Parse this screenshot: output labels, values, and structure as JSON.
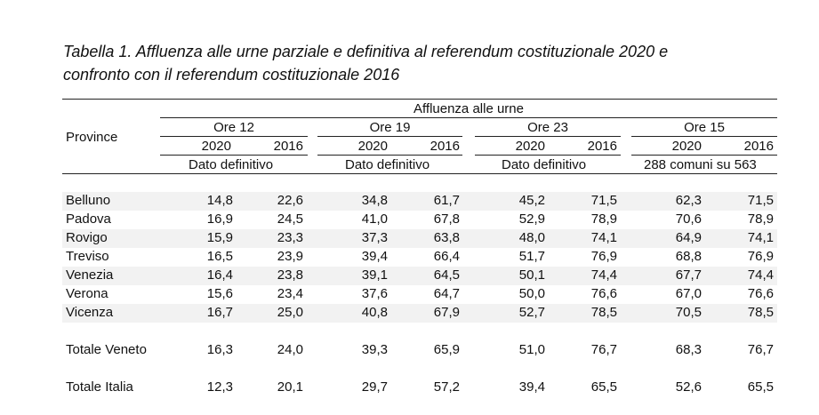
{
  "title": {
    "line1": "Tabella 1. Affluenza alle urne parziale e definitiva al referendum costituzionale 2020 e",
    "line2": "confronto con il referendum costituzionale 2016"
  },
  "header": {
    "province": "Province",
    "affluenza": "Affluenza alle urne",
    "groups": [
      {
        "label": "Ore 12",
        "y1": "2020",
        "y2": "2016",
        "note": "Dato definitivo"
      },
      {
        "label": "Ore 19",
        "y1": "2020",
        "y2": "2016",
        "note": "Dato definitivo"
      },
      {
        "label": "Ore 23",
        "y1": "2020",
        "y2": "2016",
        "note": "Dato definitivo"
      },
      {
        "label": "Ore 15",
        "y1": "2020",
        "y2": "2016",
        "note": "288 comuni su 563"
      }
    ]
  },
  "rows": [
    {
      "name": "Belluno",
      "v": [
        "14,8",
        "22,6",
        "34,8",
        "61,7",
        "45,2",
        "71,5",
        "62,3",
        "71,5"
      ]
    },
    {
      "name": "Padova",
      "v": [
        "16,9",
        "24,5",
        "41,0",
        "67,8",
        "52,9",
        "78,9",
        "70,6",
        "78,9"
      ]
    },
    {
      "name": "Rovigo",
      "v": [
        "15,9",
        "23,3",
        "37,3",
        "63,8",
        "48,0",
        "74,1",
        "64,9",
        "74,1"
      ]
    },
    {
      "name": "Treviso",
      "v": [
        "16,5",
        "23,9",
        "39,4",
        "66,4",
        "51,7",
        "76,9",
        "68,8",
        "76,9"
      ]
    },
    {
      "name": "Venezia",
      "v": [
        "16,4",
        "23,8",
        "39,1",
        "64,5",
        "50,1",
        "74,4",
        "67,7",
        "74,4"
      ]
    },
    {
      "name": "Verona",
      "v": [
        "15,6",
        "23,4",
        "37,6",
        "64,7",
        "50,0",
        "76,6",
        "67,0",
        "76,6"
      ]
    },
    {
      "name": "Vicenza",
      "v": [
        "16,7",
        "25,0",
        "40,8",
        "67,9",
        "52,7",
        "78,5",
        "70,5",
        "78,5"
      ]
    }
  ],
  "totals": [
    {
      "name": "Totale Veneto",
      "v": [
        "16,3",
        "24,0",
        "39,3",
        "65,9",
        "51,0",
        "76,7",
        "68,3",
        "76,7"
      ]
    },
    {
      "name": "Totale Italia",
      "v": [
        "12,3",
        "20,1",
        "29,7",
        "57,2",
        "39,4",
        "65,5",
        "52,6",
        "65,5"
      ]
    }
  ],
  "colors": {
    "text": "#111111",
    "row_shade": "#f2f2f2",
    "rule": "#222222"
  }
}
